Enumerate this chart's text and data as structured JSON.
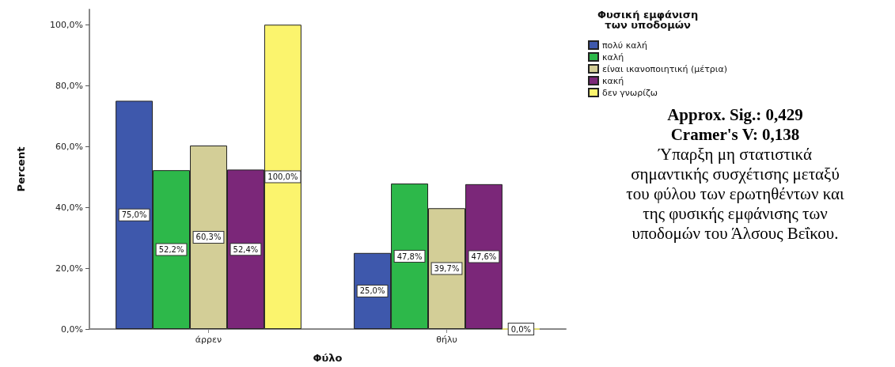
{
  "chart_data": {
    "type": "bar",
    "xlabel": "Φύλο",
    "ylabel": "Percent",
    "legend_title": "Φυσική εμφάνιση\nτων υποδομών",
    "legend": "top right",
    "grid": false,
    "categories": [
      "άρρεν",
      "θήλυ"
    ],
    "series": [
      {
        "name": "πολύ καλή",
        "color": "#3e58ac",
        "values": [
          75.0,
          25.0
        ],
        "value_labels": [
          "75,0%",
          "25,0%"
        ]
      },
      {
        "name": "καλή",
        "color": "#2db84a",
        "values": [
          52.2,
          47.8
        ],
        "value_labels": [
          "52,2%",
          "47,8%"
        ]
      },
      {
        "name": "είναι ικανοποιητική (μέτρια)",
        "color": "#d3ce97",
        "values": [
          60.3,
          39.7
        ],
        "value_labels": [
          "60,3%",
          "39,7%"
        ]
      },
      {
        "name": "κακή",
        "color": "#7b2779",
        "values": [
          52.4,
          47.6
        ],
        "value_labels": [
          "52,4%",
          "47,6%"
        ]
      },
      {
        "name": "δεν γνωρίζω",
        "color": "#fbf46d",
        "values": [
          100.0,
          0.0
        ],
        "value_labels": [
          "100,0%",
          "0,0%"
        ]
      }
    ],
    "ylim": [
      0,
      105
    ],
    "yticks": [
      {
        "value": 0,
        "label": "0,0%"
      },
      {
        "value": 20,
        "label": "20,0%"
      },
      {
        "value": 40,
        "label": "40,0%"
      },
      {
        "value": 60,
        "label": "60,0%"
      },
      {
        "value": 80,
        "label": "80,0%"
      },
      {
        "value": 100,
        "label": "100,0%"
      }
    ],
    "annotations": [
      "Approx. Sig.: 0,429",
      "Cramer's V: 0,138",
      "Ύπαρξη μη στατιστικά\nσημαντικής συσχέτισης μεταξύ\nτου φύλου των ερωτηθέντων και\nτης φυσικής εμφάνισης των\nυποδομών του Άλσους Βεΐκου."
    ]
  }
}
